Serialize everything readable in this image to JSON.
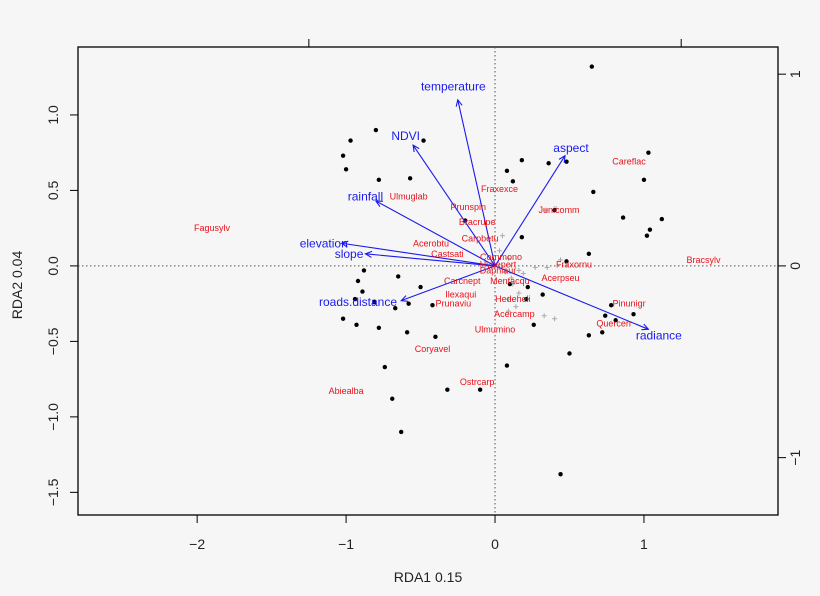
{
  "chart_data": {
    "type": "scatter",
    "subtype": "rda-triplot",
    "xlabel": "RDA1 0.15",
    "ylabel": "RDA2 0.04",
    "xlim": [
      -2.8,
      1.9
    ],
    "ylim": [
      -1.65,
      1.45
    ],
    "x_ticks": [
      -2,
      -1,
      0,
      1
    ],
    "y_ticks": [
      -1.5,
      -1.0,
      -0.5,
      0.0,
      0.5,
      1.0
    ],
    "top_ticks": [
      -1.25,
      1.25
    ],
    "right_tick_labels": [
      {
        "label": "1",
        "y": 1.27
      },
      {
        "label": "0",
        "y": 0.0
      },
      {
        "label": "−1",
        "y": -1.27
      }
    ],
    "colors": {
      "species": "#e8121b",
      "arrows": "#1a1af0",
      "sites": "#000000",
      "minor": "#aaaaaa"
    },
    "species": [
      {
        "name": "Fagusylv",
        "x": -1.9,
        "y": 0.25
      },
      {
        "name": "Ulmuglab",
        "x": -0.58,
        "y": 0.46
      },
      {
        "name": "Fraxexce",
        "x": 0.03,
        "y": 0.51
      },
      {
        "name": "Prunspin",
        "x": -0.18,
        "y": 0.39
      },
      {
        "name": "Careflac",
        "x": 0.9,
        "y": 0.69
      },
      {
        "name": "Junicomm",
        "x": 0.43,
        "y": 0.37
      },
      {
        "name": "Bracrupe",
        "x": -0.12,
        "y": 0.29
      },
      {
        "name": "Carpbetu",
        "x": -0.1,
        "y": 0.18
      },
      {
        "name": "Acerobtu",
        "x": -0.43,
        "y": 0.15
      },
      {
        "name": "Castsati",
        "x": -0.32,
        "y": 0.08
      },
      {
        "name": "Cornmono",
        "x": 0.04,
        "y": 0.06
      },
      {
        "name": "Hypepert",
        "x": 0.02,
        "y": 0.01
      },
      {
        "name": "Daphlaur",
        "x": 0.02,
        "y": -0.03
      },
      {
        "name": "Fraxornu",
        "x": 0.53,
        "y": 0.01
      },
      {
        "name": "Bracsylv",
        "x": 1.4,
        "y": 0.04
      },
      {
        "name": "Carcnept",
        "x": -0.22,
        "y": -0.1
      },
      {
        "name": "Mentacqu",
        "x": 0.1,
        "y": -0.1
      },
      {
        "name": "Acerpseu",
        "x": 0.44,
        "y": -0.08
      },
      {
        "name": "Ilexaqui",
        "x": -0.23,
        "y": -0.19
      },
      {
        "name": "Hedeheli",
        "x": 0.12,
        "y": -0.22
      },
      {
        "name": "Prunaviu",
        "x": -0.28,
        "y": -0.25
      },
      {
        "name": "Pinunigr",
        "x": 0.9,
        "y": -0.25
      },
      {
        "name": "Acercamp",
        "x": 0.13,
        "y": -0.32
      },
      {
        "name": "Quercerr",
        "x": 0.8,
        "y": -0.38
      },
      {
        "name": "Ulmumino",
        "x": 0.0,
        "y": -0.42
      },
      {
        "name": "Coryavel",
        "x": -0.42,
        "y": -0.55
      },
      {
        "name": "Ostrcarp",
        "x": -0.12,
        "y": -0.77
      },
      {
        "name": "Abiealba",
        "x": -1.0,
        "y": -0.83
      }
    ],
    "sites": [
      [
        0.65,
        1.32
      ],
      [
        -0.8,
        0.9
      ],
      [
        -0.97,
        0.83
      ],
      [
        -0.48,
        0.83
      ],
      [
        -1.02,
        0.73
      ],
      [
        -1.0,
        0.64
      ],
      [
        0.08,
        0.63
      ],
      [
        0.18,
        0.7
      ],
      [
        0.36,
        0.68
      ],
      [
        0.48,
        0.69
      ],
      [
        1.03,
        0.75
      ],
      [
        1.0,
        0.57
      ],
      [
        -0.57,
        0.58
      ],
      [
        -0.78,
        0.57
      ],
      [
        0.12,
        0.56
      ],
      [
        0.66,
        0.49
      ],
      [
        0.4,
        0.37
      ],
      [
        -0.2,
        0.3
      ],
      [
        0.86,
        0.32
      ],
      [
        1.12,
        0.31
      ],
      [
        1.04,
        0.24
      ],
      [
        1.02,
        0.2
      ],
      [
        0.18,
        0.19
      ],
      [
        0.63,
        0.08
      ],
      [
        0.48,
        0.03
      ],
      [
        -0.88,
        -0.03
      ],
      [
        -0.65,
        -0.07
      ],
      [
        -0.92,
        -0.1
      ],
      [
        -0.89,
        -0.17
      ],
      [
        -0.5,
        -0.14
      ],
      [
        0.1,
        -0.12
      ],
      [
        0.22,
        -0.14
      ],
      [
        -0.94,
        -0.22
      ],
      [
        -0.81,
        -0.24
      ],
      [
        -0.67,
        -0.28
      ],
      [
        -0.58,
        -0.25
      ],
      [
        -0.42,
        -0.26
      ],
      [
        0.32,
        -0.19
      ],
      [
        0.21,
        -0.22
      ],
      [
        0.78,
        -0.26
      ],
      [
        0.74,
        -0.33
      ],
      [
        0.93,
        -0.32
      ],
      [
        0.81,
        -0.36
      ],
      [
        -1.02,
        -0.35
      ],
      [
        -0.93,
        -0.39
      ],
      [
        -0.78,
        -0.41
      ],
      [
        -0.59,
        -0.44
      ],
      [
        -0.4,
        -0.47
      ],
      [
        0.26,
        -0.39
      ],
      [
        0.63,
        -0.46
      ],
      [
        0.72,
        -0.44
      ],
      [
        0.5,
        -0.58
      ],
      [
        -0.74,
        -0.67
      ],
      [
        0.08,
        -0.66
      ],
      [
        -0.32,
        -0.82
      ],
      [
        -0.1,
        -0.82
      ],
      [
        -0.69,
        -0.88
      ],
      [
        -0.63,
        -1.1
      ],
      [
        0.44,
        -1.38
      ]
    ],
    "minor_sites": [
      [
        0.03,
        0.1
      ],
      [
        0.09,
        0.05
      ],
      [
        0.07,
        -0.04
      ],
      [
        0.16,
        -0.03
      ],
      [
        0.19,
        -0.05
      ],
      [
        0.27,
        -0.01
      ],
      [
        0.11,
        -0.08
      ],
      [
        0.35,
        -0.01
      ],
      [
        0.44,
        0.04
      ],
      [
        0.16,
        -0.18
      ],
      [
        0.09,
        -0.22
      ],
      [
        0.14,
        -0.27
      ],
      [
        0.09,
        -0.3
      ],
      [
        0.33,
        -0.33
      ],
      [
        0.4,
        -0.35
      ],
      [
        0.41,
        0.38
      ],
      [
        0.34,
        0.37
      ],
      [
        0.05,
        0.2
      ],
      [
        0.12,
        -0.12
      ]
    ],
    "arrows": [
      {
        "name": "temperature",
        "x": -0.25,
        "y": 1.1,
        "lx": -0.28,
        "ly": 1.19
      },
      {
        "name": "NDVI",
        "x": -0.55,
        "y": 0.8,
        "lx": -0.6,
        "ly": 0.86
      },
      {
        "name": "aspect",
        "x": 0.47,
        "y": 0.73,
        "lx": 0.51,
        "ly": 0.78
      },
      {
        "name": "rainfall",
        "x": -0.8,
        "y": 0.43,
        "lx": -0.87,
        "ly": 0.46
      },
      {
        "name": "elevation",
        "x": -1.03,
        "y": 0.15,
        "lx": -1.15,
        "ly": 0.15
      },
      {
        "name": "slope",
        "x": -0.87,
        "y": 0.08,
        "lx": -0.98,
        "ly": 0.08
      },
      {
        "name": "roads.distance",
        "x": -0.63,
        "y": -0.23,
        "lx": -0.92,
        "ly": -0.24
      },
      {
        "name": "radiance",
        "x": 1.03,
        "y": -0.42,
        "lx": 1.1,
        "ly": -0.46
      }
    ]
  }
}
